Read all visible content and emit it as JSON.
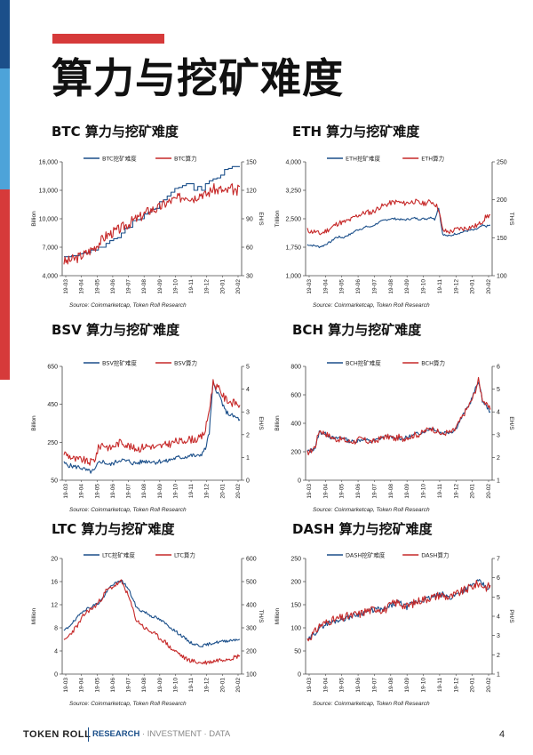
{
  "page": {
    "title": "算力与挖矿难度",
    "footer": {
      "brand": "TOKEN ROLL",
      "tag_a": "RESEARCH",
      "tag_b": " · INVESTMENT · DATA",
      "page_number": "4"
    },
    "colors": {
      "blue": "#1b4f8a",
      "red": "#c62828",
      "accent_red": "#d63a3a",
      "light_blue": "#4da3d9"
    }
  },
  "chart_data": [
    {
      "id": "btc",
      "type": "line",
      "title": "BTC 算力与挖矿难度",
      "ylabel": "Billion",
      "y2label": "EH/S",
      "ylim": [
        4000,
        16000
      ],
      "yticks": [
        "16,000",
        "13,000",
        "10,000",
        "7,000",
        "4,000"
      ],
      "ytick_values": [
        16000,
        13000,
        10000,
        7000,
        4000
      ],
      "y2lim": [
        30,
        150
      ],
      "y2ticks": [
        "150",
        "120",
        "90",
        "60",
        "30"
      ],
      "y2tick_values": [
        150,
        120,
        90,
        60,
        30
      ],
      "xticks": [
        "19-03",
        "19-04",
        "19-05",
        "19-06",
        "19-07",
        "19-08",
        "19-09",
        "19-10",
        "19-11",
        "19-12",
        "20-01",
        "20-02"
      ],
      "source": "Source: Coinmarketcap, Token Roll Research",
      "series": [
        {
          "name": "BTC挖矿难度",
          "axis": "left",
          "color": "#1b4f8a",
          "step": true,
          "values": [
            6000,
            6000,
            6100,
            6100,
            6300,
            6400,
            6400,
            6700,
            6700,
            7000,
            7000,
            7400,
            7700,
            7900,
            8000,
            8500,
            9000,
            9100,
            9800,
            9900,
            10000,
            10500,
            10700,
            11000,
            11100,
            11800,
            12000,
            12400,
            12800,
            13200,
            13300,
            13500,
            13700,
            13700,
            13000,
            13400,
            13000,
            13700,
            14000,
            14200,
            14300,
            14600,
            15200,
            15300,
            15500,
            15500,
            15500
          ]
        },
        {
          "name": "BTC算力",
          "axis": "right",
          "color": "#c62828",
          "noise": 5.5,
          "seed": 3,
          "values": [
            45,
            45,
            47,
            48,
            50,
            52,
            54,
            57,
            60,
            64,
            68,
            72,
            74,
            76,
            78,
            80,
            83,
            85,
            88,
            90,
            92,
            95,
            98,
            100,
            100,
            102,
            105,
            107,
            109,
            110,
            112,
            113,
            115,
            113,
            112,
            115,
            117,
            115,
            118,
            122,
            120,
            121,
            118,
            120,
            122,
            116,
            124
          ]
        }
      ]
    },
    {
      "id": "eth",
      "type": "line",
      "title": "ETH 算力与挖矿难度",
      "ylabel": "Trillion",
      "y2label": "TH/S",
      "ylim": [
        1000,
        4000
      ],
      "yticks": [
        "4,000",
        "3,250",
        "2,500",
        "1,750",
        "1,000"
      ],
      "ytick_values": [
        4000,
        3250,
        2500,
        1750,
        1000
      ],
      "y2lim": [
        100,
        250
      ],
      "y2ticks": [
        "250",
        "200",
        "150",
        "100"
      ],
      "y2tick_values": [
        250,
        200,
        150,
        100
      ],
      "xticks": [
        "19-03",
        "19-04",
        "19-05",
        "19-06",
        "19-07",
        "19-08",
        "19-09",
        "19-10",
        "19-11",
        "19-12",
        "20-01",
        "20-02"
      ],
      "source": "Source: Coinmarketcap, Token Roll Research",
      "series": [
        {
          "name": "ETH挖矿难度",
          "axis": "left",
          "color": "#1b4f8a",
          "noise": 25,
          "seed": 7,
          "values": [
            1820,
            1800,
            1790,
            1760,
            1790,
            1850,
            1900,
            2000,
            2020,
            2000,
            2060,
            2100,
            2180,
            2220,
            2250,
            2300,
            2280,
            2350,
            2400,
            2450,
            2480,
            2500,
            2500,
            2490,
            2470,
            2480,
            2500,
            2520,
            2490,
            2500,
            2500,
            2550,
            2480,
            2800,
            2100,
            2050,
            2050,
            2100,
            2120,
            2150,
            2180,
            2200,
            2200,
            2250,
            2320,
            2300,
            2330
          ]
        },
        {
          "name": "ETH算力",
          "axis": "right",
          "color": "#c62828",
          "noise": 3.5,
          "seed": 11,
          "values": [
            160,
            158,
            158,
            155,
            157,
            160,
            163,
            167,
            170,
            170,
            172,
            174,
            178,
            180,
            182,
            184,
            183,
            186,
            190,
            192,
            194,
            196,
            197,
            197,
            195,
            196,
            197,
            198,
            196,
            195,
            196,
            198,
            195,
            188,
            160,
            158,
            158,
            160,
            162,
            162,
            163,
            164,
            165,
            167,
            172,
            178,
            180
          ]
        }
      ]
    },
    {
      "id": "bsv",
      "type": "line",
      "title": "BSV 算力与挖矿难度",
      "ylabel": "Billion",
      "y2label": "EH/S",
      "ylim": [
        50,
        650
      ],
      "yticks": [
        "650",
        "450",
        "250",
        "50"
      ],
      "ytick_values": [
        650,
        450,
        250,
        50
      ],
      "y2lim": [
        0,
        5
      ],
      "y2ticks": [
        "5",
        "4",
        "3",
        "2",
        "1",
        "0"
      ],
      "y2tick_values": [
        5,
        4,
        3,
        2,
        1,
        0
      ],
      "xticks": [
        "19-03",
        "19-04",
        "19-05",
        "19-06",
        "19-07",
        "19-08",
        "19-09",
        "19-10",
        "19-11",
        "19-12",
        "20-01",
        "20-02"
      ],
      "source": "Source: Coinmarketcap, Token Roll Research",
      "series": [
        {
          "name": "BSV挖矿难度",
          "axis": "left",
          "color": "#1b4f8a",
          "noise": 12,
          "seed": 5,
          "values": [
            140,
            130,
            125,
            120,
            120,
            110,
            100,
            95,
            100,
            140,
            150,
            140,
            130,
            140,
            150,
            160,
            150,
            150,
            140,
            140,
            145,
            150,
            150,
            150,
            145,
            150,
            150,
            150,
            160,
            165,
            170,
            170,
            175,
            180,
            180,
            175,
            190,
            215,
            300,
            560,
            520,
            480,
            420,
            400,
            390,
            380,
            370
          ]
        },
        {
          "name": "BSV算力",
          "axis": "right",
          "color": "#c62828",
          "noise": 0.17,
          "seed": 9,
          "values": [
            1.2,
            1.1,
            1.0,
            0.9,
            0.9,
            0.9,
            0.8,
            0.8,
            0.9,
            1.4,
            1.6,
            1.5,
            1.4,
            1.5,
            1.6,
            1.7,
            1.6,
            1.5,
            1.4,
            1.4,
            1.4,
            1.5,
            1.5,
            1.5,
            1.4,
            1.5,
            1.5,
            1.6,
            1.6,
            1.7,
            1.7,
            1.7,
            1.8,
            1.8,
            1.8,
            1.8,
            1.9,
            2.2,
            3.1,
            4.3,
            4.1,
            3.9,
            3.6,
            3.5,
            3.4,
            3.4,
            3.3
          ]
        }
      ]
    },
    {
      "id": "bch",
      "type": "line",
      "title": "BCH 算力与挖矿难度",
      "ylabel": "Billion",
      "y2label": "EH/S",
      "ylim": [
        0,
        800
      ],
      "yticks": [
        "800",
        "600",
        "400",
        "200",
        "0"
      ],
      "ytick_values": [
        800,
        600,
        400,
        200,
        0
      ],
      "y2lim": [
        1,
        6
      ],
      "y2ticks": [
        "6",
        "5",
        "4",
        "3",
        "2",
        "1"
      ],
      "y2tick_values": [
        6,
        5,
        4,
        3,
        2,
        1
      ],
      "xticks": [
        "19-03",
        "19-04",
        "19-05",
        "19-06",
        "19-07",
        "19-08",
        "19-09",
        "19-10",
        "19-11",
        "19-12",
        "20-01",
        "20-02"
      ],
      "source": "Source: Coinmarketcap, Token Roll Research",
      "series": [
        {
          "name": "BCH挖矿难度",
          "axis": "left",
          "color": "#1b4f8a",
          "noise": 14,
          "seed": 13,
          "values": [
            200,
            210,
            230,
            340,
            330,
            320,
            300,
            290,
            300,
            300,
            280,
            270,
            275,
            280,
            290,
            280,
            270,
            280,
            290,
            300,
            310,
            300,
            290,
            300,
            290,
            300,
            310,
            320,
            330,
            340,
            350,
            370,
            360,
            340,
            330,
            340,
            340,
            350,
            400,
            450,
            500,
            550,
            620,
            700,
            560,
            520,
            480
          ]
        },
        {
          "name": "BCH算力",
          "axis": "right",
          "color": "#c62828",
          "noise": 0.13,
          "seed": 17,
          "values": [
            2.2,
            2.3,
            2.5,
            3.2,
            3.1,
            3.0,
            2.9,
            2.8,
            2.8,
            2.8,
            2.7,
            2.7,
            2.7,
            2.8,
            2.8,
            2.7,
            2.7,
            2.7,
            2.8,
            2.9,
            2.9,
            2.9,
            2.8,
            2.9,
            2.8,
            2.9,
            2.9,
            3.0,
            3.0,
            3.1,
            3.2,
            3.3,
            3.2,
            3.1,
            3.0,
            3.1,
            3.1,
            3.2,
            3.5,
            3.8,
            4.1,
            4.4,
            4.8,
            5.4,
            4.6,
            4.3,
            4.1
          ]
        }
      ]
    },
    {
      "id": "ltc",
      "type": "line",
      "title": "LTC 算力与挖矿难度",
      "ylabel": "Million",
      "y2label": "TH/S",
      "ylim": [
        0,
        20
      ],
      "yticks": [
        "20",
        "16",
        "12",
        "8",
        "4",
        "0"
      ],
      "ytick_values": [
        20,
        16,
        12,
        8,
        4,
        0
      ],
      "y2lim": [
        100,
        600
      ],
      "y2ticks": [
        "600",
        "500",
        "400",
        "300",
        "200",
        "100"
      ],
      "y2tick_values": [
        600,
        500,
        400,
        300,
        200,
        100
      ],
      "xticks": [
        "19-03",
        "19-04",
        "19-05",
        "19-06",
        "19-07",
        "19-08",
        "19-09",
        "19-10",
        "19-11",
        "19-12",
        "20-01",
        "20-02"
      ],
      "source": "Source: Coinmarketcap, Token Roll Research",
      "series": [
        {
          "name": "LTC挖矿难度",
          "axis": "left",
          "color": "#1b4f8a",
          "noise": 0.25,
          "seed": 19,
          "values": [
            7.5,
            8.0,
            8.8,
            9.3,
            10.2,
            11.0,
            11.3,
            11.5,
            12.0,
            12.2,
            13.0,
            14.0,
            15.0,
            15.6,
            15.8,
            16.2,
            15.5,
            14.5,
            13.0,
            11.5,
            11.0,
            10.8,
            10.4,
            10.0,
            9.8,
            9.4,
            9.0,
            8.5,
            8.0,
            7.5,
            7.0,
            6.5,
            6.0,
            5.5,
            5.2,
            5.0,
            4.9,
            5.0,
            5.2,
            5.4,
            5.5,
            5.6,
            5.7,
            5.8,
            5.9,
            6.0,
            6.0
          ]
        },
        {
          "name": "LTC算力",
          "axis": "right",
          "color": "#c62828",
          "noise": 10,
          "seed": 23,
          "values": [
            240,
            260,
            280,
            300,
            320,
            350,
            370,
            380,
            390,
            410,
            430,
            460,
            470,
            480,
            490,
            500,
            470,
            430,
            380,
            330,
            320,
            300,
            290,
            280,
            270,
            255,
            245,
            230,
            210,
            200,
            190,
            175,
            165,
            160,
            155,
            150,
            148,
            150,
            152,
            155,
            160,
            163,
            165,
            168,
            170,
            175,
            180
          ]
        }
      ]
    },
    {
      "id": "dash",
      "type": "line",
      "title": "DASH 算力与挖矿难度",
      "ylabel": "Million",
      "y2label": "PH/S",
      "ylim": [
        0,
        250
      ],
      "yticks": [
        "250",
        "200",
        "150",
        "100",
        "50",
        "0"
      ],
      "ytick_values": [
        250,
        200,
        150,
        100,
        50,
        0
      ],
      "y2lim": [
        1,
        7
      ],
      "y2ticks": [
        "7",
        "6",
        "5",
        "4",
        "3",
        "2",
        "1"
      ],
      "y2tick_values": [
        7,
        6,
        5,
        4,
        3,
        2,
        1
      ],
      "xticks": [
        "19-03",
        "19-04",
        "19-05",
        "19-06",
        "19-07",
        "19-08",
        "19-09",
        "19-10",
        "19-11",
        "19-12",
        "20-01",
        "20-02"
      ],
      "source": "Source: Coinmarketcap, Token Roll Research",
      "series": [
        {
          "name": "DASH挖矿难度",
          "axis": "left",
          "color": "#1b4f8a",
          "noise": 6,
          "seed": 29,
          "values": [
            70,
            80,
            90,
            100,
            105,
            110,
            112,
            115,
            118,
            120,
            122,
            125,
            128,
            130,
            133,
            135,
            137,
            140,
            140,
            138,
            142,
            148,
            152,
            155,
            150,
            145,
            150,
            155,
            158,
            160,
            162,
            165,
            168,
            170,
            172,
            168,
            165,
            170,
            175,
            180,
            185,
            190,
            195,
            200,
            195,
            185,
            190
          ]
        },
        {
          "name": "DASH算力",
          "axis": "right",
          "color": "#c62828",
          "noise": 0.22,
          "seed": 31,
          "values": [
            2.8,
            3.0,
            3.2,
            3.5,
            3.6,
            3.7,
            3.8,
            3.8,
            3.9,
            3.9,
            4.0,
            4.0,
            4.1,
            4.1,
            4.2,
            4.3,
            4.3,
            4.4,
            4.4,
            4.3,
            4.4,
            4.6,
            4.7,
            4.7,
            4.6,
            4.5,
            4.6,
            4.7,
            4.8,
            4.9,
            4.9,
            5.0,
            5.0,
            5.1,
            5.1,
            5.0,
            5.0,
            5.1,
            5.2,
            5.3,
            5.4,
            5.5,
            5.6,
            5.7,
            5.6,
            5.5,
            5.6
          ]
        }
      ]
    }
  ]
}
